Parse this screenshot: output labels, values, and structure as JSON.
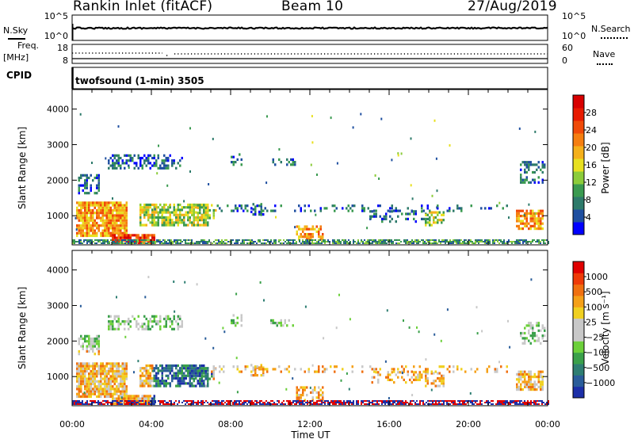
{
  "header": {
    "station": "Rankin Inlet (fitACF)",
    "beam": "Beam 10",
    "date": "27/Aug/2019"
  },
  "top_panels": {
    "nsky_label": "N.Sky",
    "nsearch_label": "N.Search",
    "nsky_ticks": [
      "10^5",
      "10^0"
    ],
    "nsearch_ticks": [
      "10^5",
      "10^0"
    ],
    "freq_label": "Freq.",
    "freq_unit": "[MHz]",
    "freq_ticks": [
      "18",
      "8"
    ],
    "nave_label": "Nave",
    "nave_ticks": [
      "60",
      "0"
    ],
    "cpid_label": "CPID",
    "cpid_text": "twofsound (1-min) 3505"
  },
  "chart_data": [
    {
      "type": "heatmap",
      "name": "power",
      "ylabel": "Slant Range [km]",
      "xlabel": "Time UT",
      "x_ticks": [
        "00:00",
        "04:00",
        "08:00",
        "12:00",
        "16:00",
        "20:00",
        "00:00"
      ],
      "y_ticks": [
        1000,
        2000,
        3000,
        4000
      ],
      "ylim": [
        180,
        4550
      ],
      "xlim_hours": [
        0,
        24
      ],
      "colorbar": {
        "label": "Power [dB]",
        "ticks": [
          "4",
          "8",
          "12",
          "16",
          "20",
          "24",
          "28"
        ],
        "colors": [
          "#0000ff",
          "#1f4fa0",
          "#2d7a6a",
          "#3a9a50",
          "#8ccc3a",
          "#e8e020",
          "#f5b01a",
          "#f57e10",
          "#f04a08",
          "#e81a00",
          "#d80000"
        ]
      }
    },
    {
      "type": "heatmap",
      "name": "velocity",
      "ylabel": "Slant Range [km]",
      "xlabel": "Time UT",
      "x_ticks": [
        "00:00",
        "04:00",
        "08:00",
        "12:00",
        "16:00",
        "20:00",
        "00:00"
      ],
      "y_ticks": [
        1000,
        2000,
        3000,
        4000
      ],
      "ylim": [
        180,
        4550
      ],
      "xlim_hours": [
        0,
        24
      ],
      "colorbar": {
        "label": "Velocity [m s⁻¹]",
        "ticks": [
          "1000",
          "500",
          "100",
          "25",
          "−25",
          "−100",
          "−500",
          "−1000"
        ],
        "colors": [
          "#1c2fa8",
          "#2a5d9a",
          "#2e7e72",
          "#3aa04a",
          "#6cd03a",
          "#c8c8c8",
          "#c8c8c8",
          "#f0d020",
          "#f5a018",
          "#f07010",
          "#ee3a08",
          "#e00000"
        ]
      }
    }
  ]
}
